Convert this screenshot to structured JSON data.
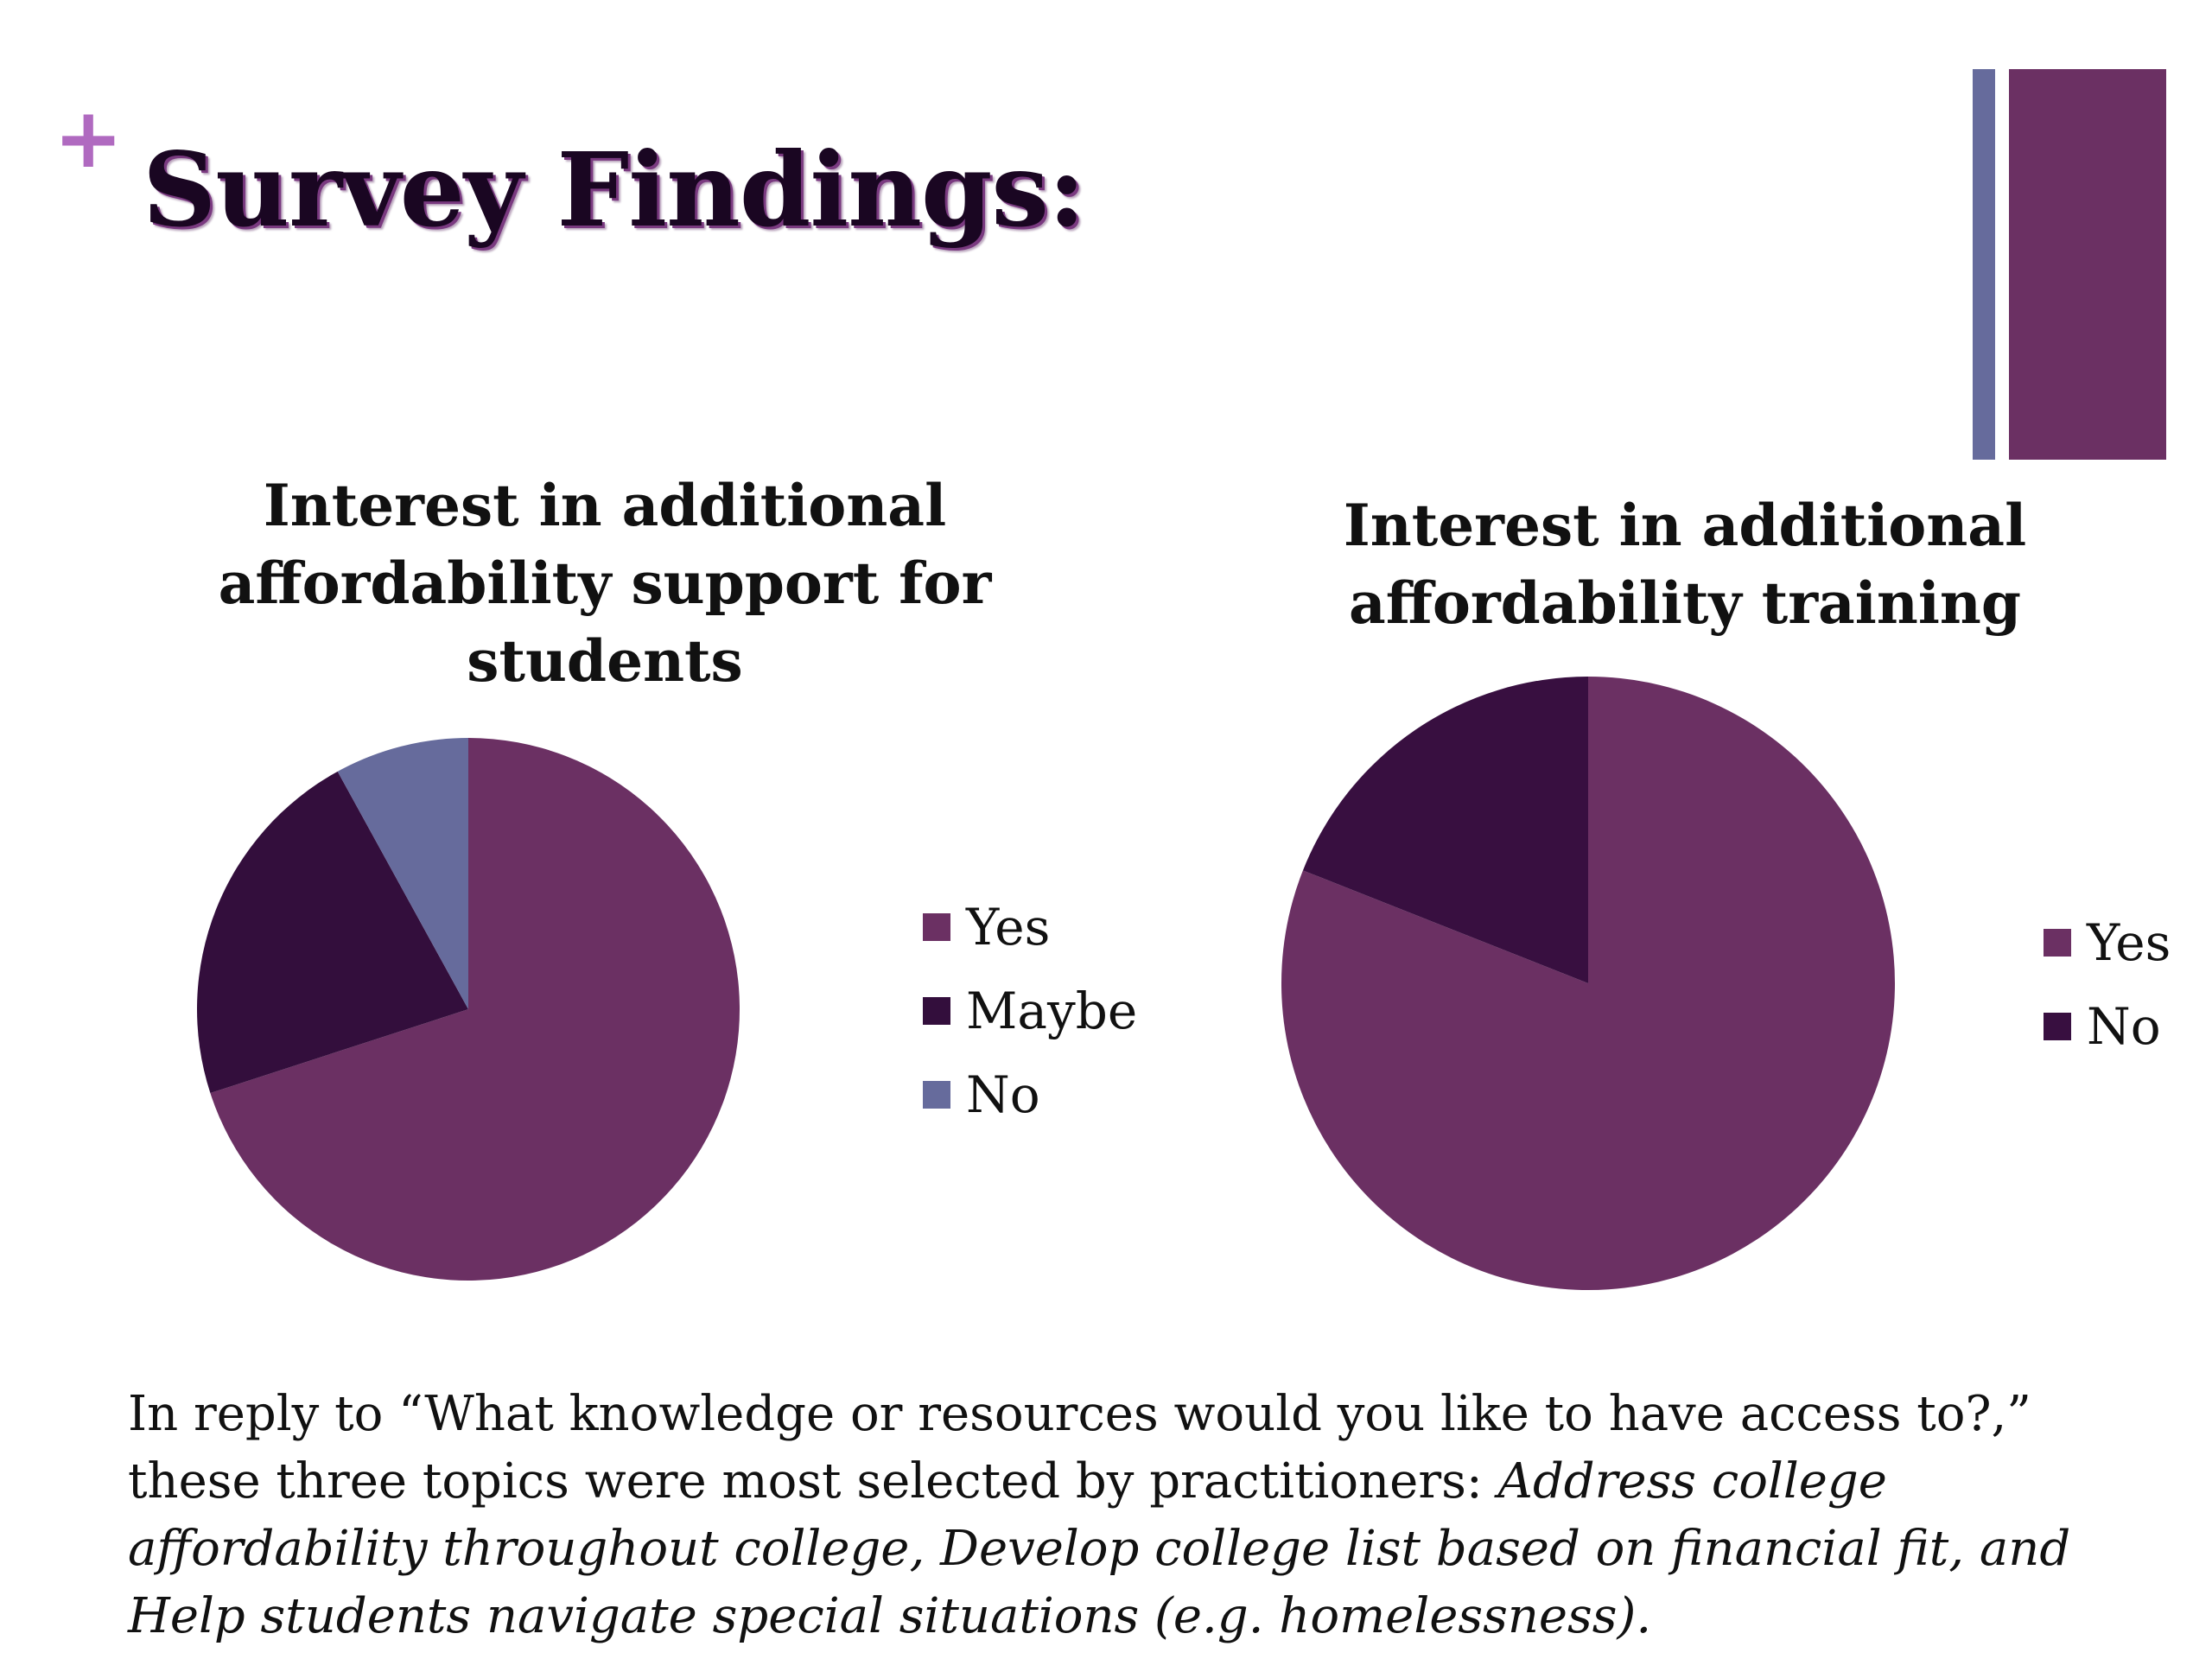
{
  "slide": {
    "plus_glyph": "+",
    "title": "Survey Findings:",
    "accent_colors": {
      "thin_bar": "#666b9c",
      "wide_bar": "#6b3063",
      "plus": "#b06ac0"
    }
  },
  "chart_data": [
    {
      "type": "pie",
      "title": "Interest in additional affordability support for students",
      "categories": [
        "Yes",
        "Maybe",
        "No"
      ],
      "values": [
        70,
        22,
        8
      ],
      "colors": [
        "#6b3063",
        "#330e3c",
        "#666b9c"
      ],
      "legend_position": "right"
    },
    {
      "type": "pie",
      "title": "Interest in additional affordability training",
      "categories": [
        "Yes",
        "No"
      ],
      "values": [
        81,
        19
      ],
      "colors": [
        "#6b3063",
        "#380f40"
      ],
      "legend_position": "right"
    }
  ],
  "footer": {
    "line_plain": "In reply to “What knowledge or resources would you like to have access to?,” these three topics were most selected by practitioners: ",
    "line_italic": "Address college affordability throughout college, Develop college list based on financial fit, and Help students navigate special situations (e.g. homelessness)."
  }
}
